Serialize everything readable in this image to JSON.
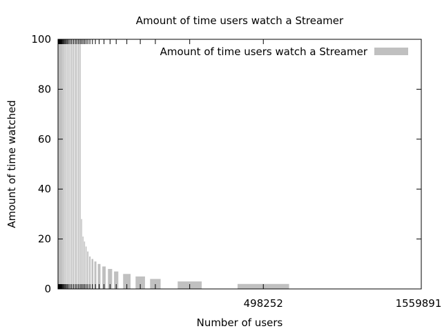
{
  "chart_data": {
    "type": "bar",
    "title": "Amount of time users watch a Streamer",
    "xlabel": "Number of users",
    "ylabel": "Amount of time watched",
    "ylim": [
      0,
      100
    ],
    "y_ticks": [
      0,
      20,
      40,
      60,
      80,
      100
    ],
    "x_tick_labels_visible": [
      "498252",
      "1559891"
    ],
    "legend": {
      "position": "top-right",
      "label": "Amount of time users watch a Streamer",
      "color": "#c0c0c0"
    },
    "grid": false,
    "bar_color": "#c0c0c0",
    "note": "Bars are placed at their user count on the x axis; the many small x tick labels near 0 overlap and are unreadable.",
    "bars": [
      {
        "x": 1,
        "y": 100
      },
      {
        "x": 2,
        "y": 100
      },
      {
        "x": 3,
        "y": 100
      },
      {
        "x": 4,
        "y": 100
      },
      {
        "x": 5,
        "y": 100
      },
      {
        "x": 7,
        "y": 100
      },
      {
        "x": 10,
        "y": 100
      },
      {
        "x": 14,
        "y": 100
      },
      {
        "x": 20,
        "y": 100
      },
      {
        "x": 30,
        "y": 100
      },
      {
        "x": 45,
        "y": 100
      },
      {
        "x": 65,
        "y": 100
      },
      {
        "x": 90,
        "y": 100
      },
      {
        "x": 130,
        "y": 100
      },
      {
        "x": 180,
        "y": 100
      },
      {
        "x": 250,
        "y": 100
      },
      {
        "x": 350,
        "y": 100
      },
      {
        "x": 450,
        "y": 100
      },
      {
        "x": 600,
        "y": 100
      },
      {
        "x": 800,
        "y": 100
      },
      {
        "x": 1000,
        "y": 100
      },
      {
        "x": 1300,
        "y": 100
      },
      {
        "x": 1700,
        "y": 100
      },
      {
        "x": 2200,
        "y": 100
      },
      {
        "x": 2800,
        "y": 100
      },
      {
        "x": 3500,
        "y": 100
      },
      {
        "x": 4200,
        "y": 100
      },
      {
        "x": 5000,
        "y": 100
      },
      {
        "x": 5800,
        "y": 100
      },
      {
        "x": 6600,
        "y": 28
      },
      {
        "x": 7400,
        "y": 21
      },
      {
        "x": 8300,
        "y": 19
      },
      {
        "x": 9300,
        "y": 17
      },
      {
        "x": 10500,
        "y": 15
      },
      {
        "x": 12000,
        "y": 13
      },
      {
        "x": 14000,
        "y": 12
      },
      {
        "x": 16500,
        "y": 11
      },
      {
        "x": 20000,
        "y": 10
      },
      {
        "x": 25000,
        "y": 9
      },
      {
        "x": 32000,
        "y": 8
      },
      {
        "x": 40000,
        "y": 7
      },
      {
        "x": 56000,
        "y": 6
      },
      {
        "x": 80000,
        "y": 5
      },
      {
        "x": 112000,
        "y": 4
      },
      {
        "x": 205000,
        "y": 3
      },
      {
        "x": 498252,
        "y": 2
      },
      {
        "x": 1559891,
        "y": 1
      }
    ],
    "labeled_x_ticks": [
      {
        "x": 498252,
        "label": "498252"
      },
      {
        "x": 1559891,
        "label": "1559891"
      }
    ]
  }
}
